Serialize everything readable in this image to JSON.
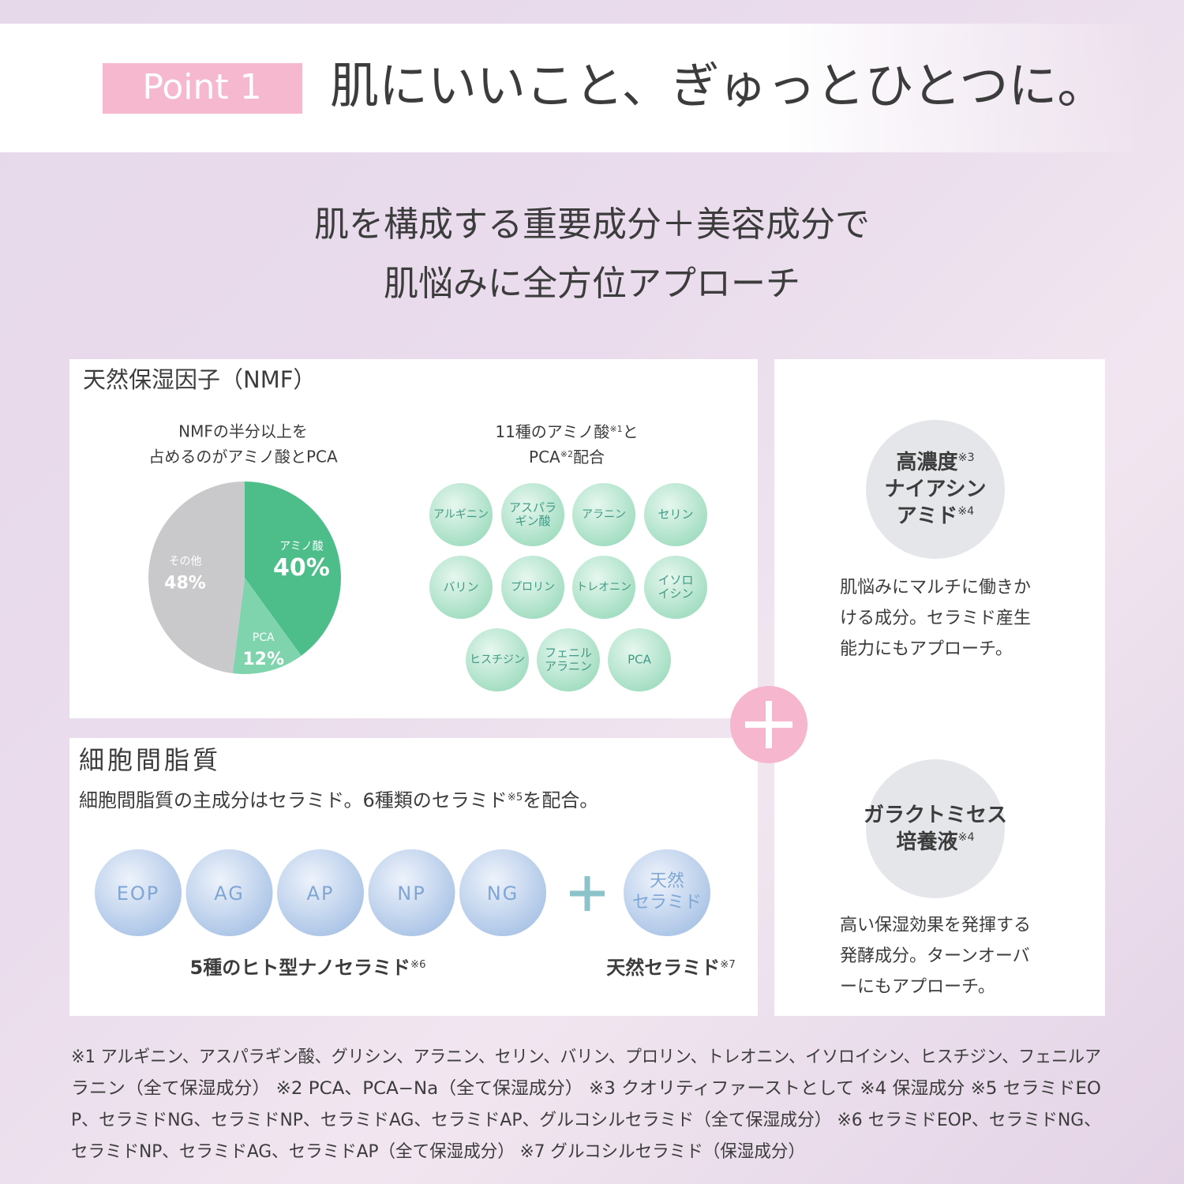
{
  "header": {
    "badge": "Point 1",
    "title": "肌にいいこと、ぎゅっとひとつに。"
  },
  "headline": [
    "肌を構成する重要成分＋美容成分で",
    "肌悩みに全方位アプローチ"
  ],
  "nmf": {
    "title": "天然保湿因子（NMF）",
    "pie_caption": [
      "NMFの半分以上を",
      "占めるのがアミノ酸とPCA"
    ],
    "amino_caption": [
      {
        "text": "11種のアミノ酸",
        "note": "※1",
        "end": "と"
      },
      {
        "text": "PCA",
        "note": "※2",
        "end": "配合"
      }
    ],
    "amino_acids": [
      [
        "アルギニン"
      ],
      [
        "アスパラ",
        "ギン酸"
      ],
      [
        "アラニン"
      ],
      [
        "セリン"
      ],
      [
        "バリン"
      ],
      [
        "プロリン"
      ],
      [
        "トレオニン"
      ],
      [
        "イソロ",
        "イシン"
      ],
      [
        "ヒスチジン"
      ],
      [
        "フェニル",
        "アラニン"
      ],
      [
        "PCA"
      ]
    ]
  },
  "chart_data": {
    "type": "pie",
    "categories": [
      "アミノ酸",
      "PCA",
      "その他"
    ],
    "values": [
      40,
      12,
      48
    ],
    "value_labels": [
      "40%",
      "12%",
      "48%"
    ],
    "colors": [
      "#4dbd8a",
      "#7fd4ae",
      "#c9c9cb"
    ]
  },
  "lipid": {
    "title": "細胞間脂質",
    "subtitle": {
      "text": "細胞間脂質の主成分はセラミド。6種類のセラミド",
      "note": "※5",
      "end": "を配合。"
    },
    "ceramides": [
      "EOP",
      "AG",
      "AP",
      "NP",
      "NG"
    ],
    "natural": [
      "天然",
      "セラミド"
    ],
    "labels": [
      {
        "text": "5種のヒト型ナノセラミド",
        "note": "※6"
      },
      {
        "text": "天然セラミド",
        "note": "※7"
      }
    ]
  },
  "niacinamide": {
    "name": [
      {
        "text": "高濃度",
        "note": "※3"
      },
      {
        "text": "ナイアシン"
      },
      {
        "text": "アミド",
        "note": "※4"
      }
    ],
    "desc": [
      "肌悩みにマルチに働きか",
      "ける成分。セラミド産生",
      "能力にもアプローチ。"
    ]
  },
  "galactomyces": {
    "name": [
      {
        "text": "ガラクトミセス"
      },
      {
        "text": "培養液",
        "note": "※4"
      }
    ],
    "desc": [
      "高い保湿効果を発揮する",
      "発酵成分。ターンオーバ",
      "ーにもアプローチ。"
    ]
  },
  "footnotes": [
    "※1 アルギニン、アスパラギン酸、グリシン、アラニン、セリン、バリン、プロリン、トレオニン、イソロイシン、ヒスチジン、フェニルア",
    "ラニン（全て保湿成分） ※2 PCA、PCA−Na（全て保湿成分） ※3 クオリティファーストとして ※4 保湿成分 ※5 セラミドEO",
    "P、セラミドNG、セラミドNP、セラミドAG、セラミドAP、グルコシルセラミド（全て保湿成分） ※6 セラミドEOP、セラミドNG、",
    "セラミドNP、セラミドAG、セラミドAP（全て保湿成分） ※7 グルコシルセラミド（保湿成分）"
  ]
}
